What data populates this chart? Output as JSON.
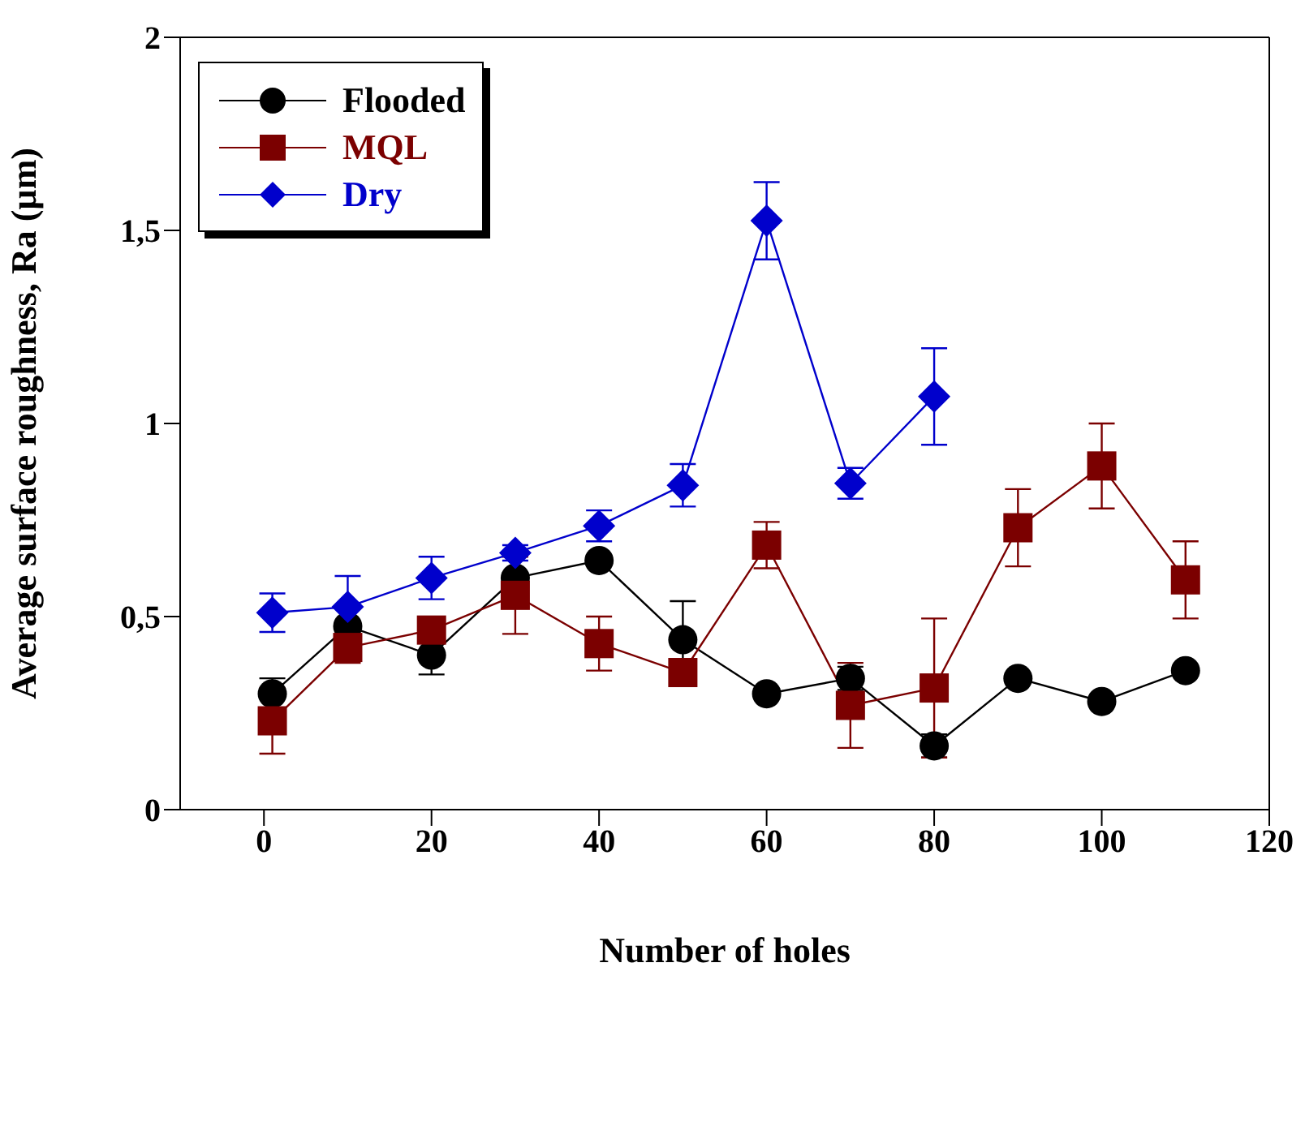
{
  "chart_data": {
    "type": "line",
    "xlabel": "Number of holes",
    "ylabel": "Average surface roughness, Ra (µm)",
    "xlim": [
      -10,
      120
    ],
    "xticks": [
      0,
      20,
      40,
      60,
      80,
      100,
      120
    ],
    "ylim": [
      0,
      2
    ],
    "yticks": [
      0,
      {
        "value": 0.5,
        "label": "0,5"
      },
      1,
      {
        "value": 1.5,
        "label": "1,5"
      },
      2
    ],
    "legend": "top left",
    "grid": false,
    "series": [
      {
        "name": "Flooded",
        "color": "#000000",
        "marker": "circle",
        "x": [
          1,
          10,
          20,
          30,
          40,
          50,
          60,
          70,
          80,
          90,
          100,
          110
        ],
        "values": [
          0.3,
          0.475,
          0.4,
          0.6,
          0.645,
          0.44,
          0.3,
          0.34,
          0.165,
          0.34,
          0.28,
          0.36
        ],
        "errors": [
          0.04,
          null,
          0.05,
          null,
          null,
          0.1,
          null,
          0.03,
          0.03,
          null,
          null,
          null
        ]
      },
      {
        "name": "MQL",
        "color": "#7b0000",
        "marker": "square",
        "x": [
          1,
          10,
          20,
          30,
          40,
          50,
          60,
          70,
          80,
          90,
          100,
          110
        ],
        "values": [
          0.23,
          0.42,
          0.465,
          0.555,
          0.43,
          0.355,
          0.685,
          0.27,
          0.315,
          0.73,
          0.89,
          0.595
        ],
        "errors": [
          0.085,
          0.04,
          null,
          0.1,
          0.07,
          null,
          0.06,
          0.11,
          0.18,
          0.1,
          0.11,
          0.1
        ]
      },
      {
        "name": "Dry",
        "color": "#0000cc",
        "marker": "diamond",
        "x": [
          1,
          10,
          20,
          30,
          40,
          50,
          60,
          70,
          80
        ],
        "values": [
          0.51,
          0.525,
          0.6,
          0.665,
          0.735,
          0.84,
          1.525,
          0.845,
          1.07
        ],
        "errors": [
          0.05,
          0.08,
          0.055,
          0.02,
          0.04,
          0.055,
          0.1,
          0.04,
          0.125
        ]
      }
    ]
  }
}
